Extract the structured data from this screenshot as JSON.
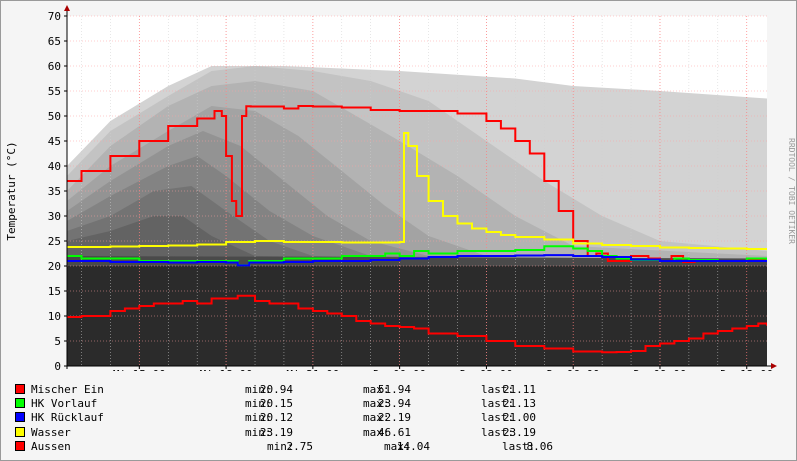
{
  "chart_data": {
    "type": "line",
    "title": "",
    "ylabel": "Temperatur (°C)",
    "watermark": "RRDTOOL / TOBI OETIKER",
    "ylim": [
      0,
      70
    ],
    "yticks": [
      "0",
      "5",
      "10",
      "15",
      "20",
      "25",
      "30",
      "35",
      "40",
      "45",
      "50",
      "55",
      "60",
      "65",
      "70"
    ],
    "xlim": [
      12.5,
      36.7
    ],
    "xtick_values": [
      15,
      18,
      21,
      24,
      27,
      30,
      33,
      36
    ],
    "xtick_labels": [
      "Mi 15:00",
      "Mi 18:00",
      "Mi 21:00",
      "Do 00:00",
      "Do 03:00",
      "Do 06:00",
      "Do 09:00",
      "Do 12:00"
    ],
    "grid": true,
    "series": [
      {
        "name": "Mischer Ein",
        "color": "#ff0000",
        "x": [
          12.5,
          13.0,
          14.0,
          15.0,
          16.0,
          17.0,
          17.6,
          17.85,
          18.0,
          18.2,
          18.35,
          18.55,
          18.7,
          18.85,
          19.5,
          20.0,
          20.5,
          21.0,
          22.0,
          23.0,
          24.0,
          25.0,
          26.0,
          27.0,
          27.5,
          28.0,
          28.5,
          29.0,
          29.5,
          30.0,
          30.5,
          30.8,
          31.2,
          31.6,
          32.0,
          32.6,
          33.0,
          33.4,
          33.8,
          34.2,
          34.6,
          35.0,
          35.5,
          36.0,
          36.7
        ],
        "y": [
          37,
          39,
          42,
          45,
          48,
          49.5,
          51,
          50,
          42,
          33,
          30,
          50,
          51.94,
          51.9,
          51.9,
          51.5,
          52,
          51.9,
          51.7,
          51.2,
          51,
          51,
          50.5,
          49,
          47.5,
          45,
          42.5,
          37,
          31,
          25,
          22,
          22.5,
          21,
          21,
          22,
          21.5,
          21,
          22,
          20.8,
          21,
          21.2,
          21,
          21,
          21.1,
          21.11
        ]
      },
      {
        "name": "HK Vorlauf",
        "color": "#00ff00",
        "x": [
          12.5,
          13.0,
          14.0,
          15.0,
          16.0,
          17.0,
          18.0,
          18.4,
          18.8,
          20.0,
          21.0,
          22.0,
          23.0,
          23.5,
          24.0,
          24.5,
          25.0,
          26.0,
          27.0,
          28.0,
          29.0,
          30.0,
          30.5,
          31.0,
          31.5,
          32.0,
          33.0,
          33.5,
          34.0,
          35.0,
          35.5,
          36.0,
          36.7
        ],
        "y": [
          22,
          21.5,
          21.5,
          21,
          21,
          21,
          21,
          20.15,
          21,
          21.5,
          21.5,
          22,
          22,
          22.5,
          22,
          23,
          22.5,
          23,
          23,
          23.2,
          23.94,
          23.5,
          23,
          22,
          21.5,
          21.2,
          21,
          21.5,
          21.2,
          21,
          21,
          21.5,
          21.13
        ]
      },
      {
        "name": "HK Rücklauf",
        "color": "#0000ff",
        "x": [
          12.5,
          13.0,
          14.0,
          15.0,
          16.0,
          17.0,
          18.0,
          18.4,
          18.8,
          20.0,
          21.0,
          22.0,
          23.0,
          24.0,
          25.0,
          26.0,
          27.0,
          28.0,
          29.0,
          30.0,
          31.0,
          32.0,
          33.0,
          34.0,
          35.0,
          36.0,
          36.7
        ],
        "y": [
          21,
          21,
          20.8,
          20.8,
          20.7,
          20.8,
          20.7,
          20.12,
          20.7,
          20.8,
          21,
          21,
          21.2,
          21.5,
          21.8,
          22,
          22,
          22.1,
          22.19,
          22,
          21.8,
          21.3,
          21,
          21,
          21,
          21,
          21
        ]
      },
      {
        "name": "Wasser",
        "color": "#ffff00",
        "x": [
          12.5,
          13.0,
          14.0,
          15.0,
          16.0,
          17.0,
          18.0,
          19.0,
          20.0,
          21.0,
          22.0,
          23.0,
          24.0,
          24.15,
          24.3,
          24.6,
          25.0,
          25.5,
          26.0,
          26.5,
          27.0,
          27.5,
          28.0,
          29.0,
          30.0,
          31.0,
          32.0,
          33.0,
          34.0,
          35.0,
          36.0,
          36.7
        ],
        "y": [
          23.8,
          23.8,
          23.9,
          24,
          24.1,
          24.3,
          24.8,
          25,
          24.8,
          24.8,
          24.7,
          24.7,
          24.8,
          46.61,
          44,
          38,
          33,
          30,
          28.5,
          27.5,
          26.8,
          26.2,
          25.8,
          25.3,
          24.5,
          24.2,
          24,
          23.7,
          23.6,
          23.5,
          23.4,
          23.19
        ]
      },
      {
        "name": "Aussen",
        "color": "#ff0000",
        "x": [
          12.5,
          13.0,
          13.5,
          14.0,
          14.5,
          15.0,
          15.5,
          16.0,
          16.5,
          17.0,
          17.5,
          18.0,
          18.4,
          19.0,
          19.5,
          20.0,
          20.5,
          21.0,
          21.5,
          22.0,
          22.5,
          23.0,
          23.5,
          24.0,
          24.5,
          25.0,
          26.0,
          27.0,
          28.0,
          29.0,
          30.0,
          31.0,
          31.5,
          32.0,
          32.5,
          33.0,
          33.5,
          34.0,
          34.5,
          35.0,
          35.5,
          36.0,
          36.4,
          36.7
        ],
        "y": [
          9.8,
          10,
          10,
          11,
          11.5,
          12,
          12.5,
          12.5,
          13,
          12.5,
          13.5,
          13.5,
          14.04,
          13,
          12.5,
          12.5,
          11.5,
          11,
          10.5,
          10,
          9,
          8.5,
          8,
          7.8,
          7.5,
          6.5,
          6,
          5,
          4,
          3.5,
          2.9,
          2.75,
          2.8,
          3,
          4,
          4.5,
          5,
          5.5,
          6.5,
          7,
          7.5,
          8,
          8.5,
          8.06
        ]
      }
    ]
  },
  "legend": [
    {
      "name": "Mischer Ein",
      "color": "#ff0000",
      "min_label": "min:",
      "min": "20.94",
      "max_label": "max:",
      "max": "51.94",
      "last_label": "last:",
      "last": "21.11"
    },
    {
      "name": "HK Vorlauf",
      "color": "#00ff00",
      "min_label": "min:",
      "min": "20.15",
      "max_label": "max:",
      "max": "23.94",
      "last_label": "last:",
      "last": "21.13"
    },
    {
      "name": "HK Rücklauf",
      "color": "#0000ff",
      "min_label": "min:",
      "min": "20.12",
      "max_label": "max:",
      "max": "22.19",
      "last_label": "last:",
      "last": "21.00"
    },
    {
      "name": "Wasser",
      "color": "#ffff00",
      "min_label": "min:",
      "min": "23.19",
      "max_label": "max:",
      "max": "46.61",
      "last_label": "last:",
      "last": "23.19"
    },
    {
      "name": "Aussen",
      "color": "#ff0000",
      "min_label": "min:",
      "min": "2.75",
      "max_label": "max:",
      "max": "14.04",
      "last_label": "last:",
      "last": "8.06"
    }
  ]
}
